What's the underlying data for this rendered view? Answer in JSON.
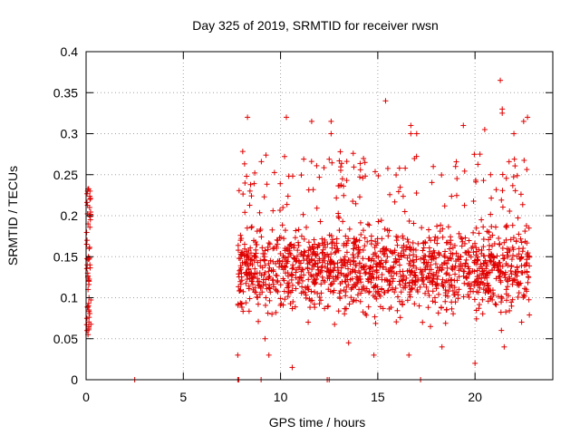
{
  "chart_data": {
    "type": "scatter",
    "title": "Day 325 of 2019, SRMTID for receiver rwsn",
    "xlabel": "GPS time / hours",
    "ylabel": "SRMTID / TECUs",
    "xlim": [
      0,
      24
    ],
    "ylim": [
      0,
      0.4
    ],
    "xticks": [
      0,
      5,
      10,
      15,
      20
    ],
    "xtick_labels": [
      "0",
      "5",
      "10",
      "15",
      "20"
    ],
    "yticks": [
      0,
      0.05,
      0.1,
      0.15,
      0.2,
      0.25,
      0.3,
      0.35,
      0.4
    ],
    "ytick_labels": [
      "0",
      "0.05",
      "0.1",
      "0.15",
      "0.2",
      "0.25",
      "0.3",
      "0.35",
      "0.4"
    ],
    "grid": true,
    "marker": "+",
    "color": "#e00000",
    "series": [
      {
        "name": "SRMTID",
        "points": [
          [
            0.05,
            0.17
          ],
          [
            0.08,
            0.23
          ],
          [
            0.1,
            0.19
          ],
          [
            0.12,
            0.15
          ],
          [
            0.15,
            0.12
          ],
          [
            0.18,
            0.21
          ],
          [
            0.05,
            0.06
          ],
          [
            0.1,
            0.055
          ],
          [
            0.12,
            0.09
          ],
          [
            0.15,
            0.1
          ],
          [
            0.18,
            0.2
          ],
          [
            0.2,
            0.22
          ],
          [
            0.08,
            0.13
          ],
          [
            0.1,
            0.11
          ],
          [
            0.14,
            0.085
          ],
          [
            0.2,
            0.23
          ],
          [
            0.06,
            0.14
          ],
          [
            0.16,
            0.16
          ],
          [
            0.22,
            0.195
          ],
          [
            0.09,
            0.125
          ],
          [
            2.5,
            0.0
          ],
          [
            7.8,
            0.0
          ],
          [
            7.85,
            0.0
          ],
          [
            9.0,
            0.0
          ],
          [
            12.4,
            0.0
          ],
          [
            12.5,
            0.0
          ],
          [
            17.2,
            0.0
          ],
          [
            7.8,
            0.03
          ],
          [
            8.3,
            0.32
          ],
          [
            9.4,
            0.03
          ],
          [
            10.3,
            0.32
          ],
          [
            10.6,
            0.015
          ],
          [
            11.6,
            0.315
          ],
          [
            12.6,
            0.315
          ],
          [
            12.6,
            0.3
          ],
          [
            15.4,
            0.34
          ],
          [
            16.7,
            0.31
          ],
          [
            16.7,
            0.3
          ],
          [
            17.0,
            0.3
          ],
          [
            17.3,
            0.07
          ],
          [
            19.4,
            0.31
          ],
          [
            20.0,
            0.02
          ],
          [
            20.5,
            0.305
          ],
          [
            21.3,
            0.365
          ],
          [
            21.4,
            0.33
          ],
          [
            21.4,
            0.325
          ],
          [
            22.0,
            0.3
          ],
          [
            22.5,
            0.315
          ],
          [
            22.7,
            0.32
          ],
          [
            21.5,
            0.04
          ],
          [
            16.6,
            0.03
          ],
          [
            14.8,
            0.03
          ],
          [
            19.0,
            0.26
          ],
          [
            20.8,
            0.25
          ],
          [
            18.3,
            0.04
          ],
          [
            9.2,
            0.05
          ],
          [
            13.5,
            0.045
          ]
        ]
      }
    ]
  }
}
